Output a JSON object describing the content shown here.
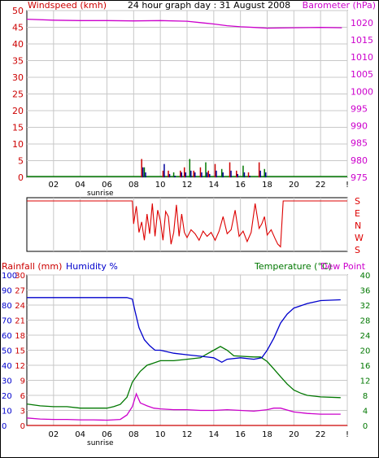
{
  "colors": {
    "wind": "#cc0000",
    "gust": "#cc0000",
    "wind_avg": "#000099",
    "wind_green": "#007700",
    "barometer": "#cc00cc",
    "direction": "#dd0000",
    "rainfall": "#cc0000",
    "humidity": "#0000cc",
    "temperature": "#007700",
    "dewpoint": "#cc00cc",
    "grid": "#c8c8c8",
    "frame": "#000000"
  },
  "x_ticks": [
    "02",
    "04",
    "06",
    "08",
    "10",
    "12",
    "14",
    "16",
    "18",
    "20",
    "22",
    "!"
  ],
  "sunrise_label": "sunrise",
  "chart_data": [
    {
      "type": "line",
      "title": "24 hour graph day : 31 August 2008",
      "left_axis": {
        "label": "Windspeed (kmh)",
        "ylim": [
          0,
          50
        ],
        "ticks": [
          "0",
          "5",
          "10",
          "15",
          "20",
          "25",
          "30",
          "35",
          "40",
          "45",
          "50"
        ]
      },
      "right_axis": {
        "label": "Barometer (hPa)",
        "ylim": [
          975,
          1023.5
        ],
        "ticks": [
          "975",
          "980",
          "985",
          "990",
          "995",
          "1000",
          "1005",
          "1010",
          "1015",
          "1020"
        ]
      },
      "x_range": [
        0,
        24
      ],
      "series": [
        {
          "name": "Barometer (hPa)",
          "axis": "right",
          "kind": "line",
          "x": [
            0,
            2,
            4,
            6,
            8,
            10,
            12,
            13,
            14,
            15,
            16,
            17,
            18,
            20,
            22,
            23.6
          ],
          "values": [
            1021.0,
            1020.7,
            1020.6,
            1020.6,
            1020.5,
            1020.6,
            1020.4,
            1020.0,
            1019.6,
            1019.1,
            1018.8,
            1018.6,
            1018.4,
            1018.5,
            1018.6,
            1018.5
          ]
        },
        {
          "name": "Windspeed (kmh)",
          "axis": "left",
          "kind": "bars",
          "x": [
            8.6,
            8.8,
            10.2,
            10.6,
            11.0,
            11.5,
            11.8,
            12.2,
            12.5,
            13.0,
            13.4,
            13.6,
            14.1,
            14.6,
            15.2,
            15.7,
            16.2,
            16.6,
            17.4,
            17.8
          ],
          "gust": [
            5.5,
            3,
            2,
            2,
            1.5,
            2,
            3,
            5.5,
            2,
            3,
            4.5,
            2,
            4,
            2.5,
            4.5,
            2,
            3.5,
            1.5,
            4.5,
            2.5
          ],
          "avg": [
            3,
            1.5,
            4,
            1,
            0.5,
            1.5,
            1.5,
            2,
            1.5,
            1.5,
            1.5,
            1,
            2,
            1.5,
            2,
            1,
            1.5,
            0.5,
            2,
            1.5
          ]
        }
      ]
    },
    {
      "type": "line",
      "title": "",
      "right_axis": {
        "ticks": [
          "S",
          "E",
          "N",
          "W",
          "S"
        ]
      },
      "x_range": [
        0,
        24
      ],
      "series": [
        {
          "name": "",
          "kind": "line",
          "axis": "right",
          "x": [
            0,
            7.9,
            8.0,
            8.2,
            8.4,
            8.6,
            8.8,
            9.0,
            9.2,
            9.4,
            9.6,
            9.8,
            10.0,
            10.2,
            10.4,
            10.6,
            10.8,
            11.0,
            11.2,
            11.4,
            11.6,
            11.8,
            12.0,
            12.3,
            12.6,
            12.9,
            13.2,
            13.5,
            13.8,
            14.1,
            14.4,
            14.7,
            15.0,
            15.3,
            15.6,
            15.9,
            16.2,
            16.5,
            16.8,
            17.1,
            17.4,
            17.6,
            17.8,
            18.0,
            18.3,
            18.6,
            18.8,
            19.0,
            19.2,
            24
          ],
          "values": [
            180,
            180,
            355,
            220,
            60,
            340,
            120,
            280,
            70,
            200,
            90,
            250,
            330,
            120,
            260,
            300,
            150,
            60,
            210,
            90,
            280,
            60,
            100,
            40,
            70,
            120,
            50,
            90,
            60,
            120,
            50,
            300,
            70,
            40,
            250,
            90,
            50,
            130,
            60,
            200,
            30,
            355,
            300,
            80,
            40,
            110,
            150,
            170,
            180,
            180
          ]
        }
      ]
    },
    {
      "type": "line",
      "title": "",
      "left_axis": {
        "label": "Rainfall (mm)",
        "ylim": [
          0,
          30
        ],
        "ticks": [
          "0",
          "3",
          "6",
          "9",
          "12",
          "15",
          "18",
          "21",
          "24",
          "27",
          "30"
        ]
      },
      "left_axis_2": {
        "label": "Humidity %",
        "ylim": [
          0,
          100
        ],
        "ticks": [
          "0",
          "10",
          "20",
          "30",
          "40",
          "50",
          "60",
          "70",
          "80",
          "90",
          "100"
        ]
      },
      "right_axis": {
        "label": "Temperature (°C)",
        "ylim": [
          0,
          40
        ],
        "ticks": [
          "0",
          "4",
          "8",
          "12",
          "16",
          "20",
          "24",
          "28",
          "32",
          "36",
          "40"
        ]
      },
      "right_label_2": "Dew Point",
      "x_range": [
        0,
        24
      ],
      "series": [
        {
          "name": "Humidity %",
          "axis": "left2",
          "kind": "line",
          "x": [
            0,
            2,
            4,
            6,
            7.5,
            7.9,
            8.1,
            8.4,
            8.8,
            9.2,
            9.6,
            10,
            11,
            12,
            13,
            14,
            14.6,
            15,
            16,
            17,
            17.6,
            18,
            18.5,
            19,
            19.5,
            20,
            21,
            22,
            23.5
          ],
          "values": [
            85,
            85,
            85,
            85,
            85,
            84,
            76,
            65,
            57,
            53,
            50,
            50,
            48,
            47,
            46,
            45,
            42,
            44,
            45,
            44,
            45,
            50,
            58,
            68,
            74,
            78,
            81,
            83,
            83.5
          ]
        },
        {
          "name": "Rainfall (mm)",
          "axis": "left",
          "kind": "line",
          "x": [
            0,
            24
          ],
          "values": [
            0,
            0
          ]
        },
        {
          "name": "Temperature (°C)",
          "axis": "right",
          "kind": "line",
          "x": [
            0,
            1,
            2,
            3,
            4,
            5,
            6,
            6.5,
            7,
            7.5,
            7.9,
            8.2,
            8.5,
            9,
            9.5,
            10,
            11,
            12,
            13,
            13.5,
            14,
            14.5,
            15,
            15.5,
            16,
            17,
            17.5,
            18,
            18.5,
            19,
            19.5,
            20,
            20.5,
            21,
            22,
            23.5
          ],
          "values": [
            5.7,
            5.2,
            5.0,
            5.0,
            4.6,
            4.6,
            4.6,
            5.0,
            5.6,
            7.5,
            11.5,
            13.0,
            14.4,
            16.0,
            16.6,
            17.2,
            17.2,
            17.6,
            18.0,
            19.0,
            20.0,
            21.0,
            20.0,
            18.5,
            18.4,
            18.2,
            18.2,
            17.0,
            15.0,
            13.0,
            11.0,
            9.4,
            8.6,
            8.0,
            7.6,
            7.4
          ]
        },
        {
          "name": "Dew Point",
          "axis": "right",
          "kind": "line",
          "x": [
            0,
            1,
            2,
            3,
            4,
            5,
            6,
            7,
            7.5,
            7.9,
            8.2,
            8.5,
            9,
            9.5,
            10,
            11,
            12,
            13,
            14,
            15,
            16,
            17,
            18,
            18.5,
            19,
            20,
            21,
            22,
            23.5
          ],
          "values": [
            2.0,
            1.7,
            1.6,
            1.6,
            1.5,
            1.5,
            1.4,
            1.6,
            2.8,
            5.0,
            8.4,
            6.0,
            5.2,
            4.6,
            4.4,
            4.2,
            4.2,
            4.0,
            4.0,
            4.2,
            4.0,
            3.8,
            4.2,
            4.6,
            4.6,
            3.6,
            3.2,
            3.0,
            3.0
          ]
        }
      ]
    }
  ]
}
